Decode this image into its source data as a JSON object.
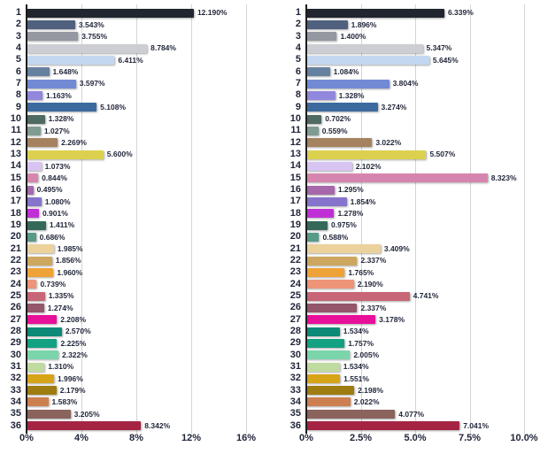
{
  "page": {
    "background": "#ffffff",
    "text_color": "#1f2438",
    "grid_color": "#d4d4d4",
    "axis_color": "#1c1c1c"
  },
  "palette": [
    "#21252f",
    "#50607f",
    "#9598a1",
    "#cdced3",
    "#c3d8f0",
    "#66809f",
    "#7289d4",
    "#9187dd",
    "#3c6a9e",
    "#4f6a62",
    "#7f9b92",
    "#a5825f",
    "#dcd14e",
    "#d8c4f2",
    "#d686ae",
    "#a667ab",
    "#8673cc",
    "#c02fd6",
    "#34695a",
    "#579a88",
    "#ebd29c",
    "#cda75f",
    "#efa238",
    "#ee9478",
    "#c76677",
    "#94566a",
    "#e80f9a",
    "#0d8977",
    "#12a181",
    "#7bd5ab",
    "#bfdb9f",
    "#d8a417",
    "#9f7c10",
    "#cd7f50",
    "#8a635c",
    "#a52444"
  ],
  "chart_data": [
    {
      "type": "bar",
      "orientation": "horizontal",
      "title": "",
      "categories": [
        "1",
        "2",
        "3",
        "4",
        "5",
        "6",
        "7",
        "8",
        "9",
        "10",
        "11",
        "12",
        "13",
        "14",
        "15",
        "16",
        "17",
        "18",
        "19",
        "20",
        "21",
        "22",
        "23",
        "24",
        "25",
        "26",
        "27",
        "28",
        "29",
        "30",
        "31",
        "32",
        "33",
        "34",
        "35",
        "36"
      ],
      "values": [
        12.19,
        3.543,
        3.755,
        8.784,
        6.411,
        1.648,
        3.597,
        1.163,
        5.108,
        1.328,
        1.027,
        2.269,
        5.6,
        1.073,
        0.844,
        0.495,
        1.08,
        0.901,
        1.411,
        0.686,
        1.985,
        1.856,
        1.96,
        0.739,
        1.335,
        1.274,
        2.208,
        2.57,
        2.225,
        2.322,
        1.31,
        1.996,
        2.179,
        1.583,
        3.205,
        8.342
      ],
      "value_labels": [
        "12.190%",
        "3.543%",
        "3.755%",
        "8.784%",
        "6.411%",
        "1.648%",
        "3.597%",
        "1.163%",
        "5.108%",
        "1.328%",
        "1.027%",
        "2.269%",
        "5.600%",
        "1.073%",
        "0.844%",
        "0.495%",
        "1.080%",
        "0.901%",
        "1.411%",
        "0.686%",
        "1.985%",
        "1.856%",
        "1.960%",
        "0.739%",
        "1.335%",
        "1.274%",
        "2.208%",
        "2.570%",
        "2.225%",
        "2.322%",
        "1.310%",
        "1.996%",
        "2.179%",
        "1.583%",
        "3.205%",
        "8.342%"
      ],
      "xlim": [
        0,
        16
      ],
      "xticks": [
        {
          "value": 0,
          "label": "0%"
        },
        {
          "value": 4,
          "label": "4%"
        },
        {
          "value": 8,
          "label": "8%"
        },
        {
          "value": 12,
          "label": "12%"
        },
        {
          "value": 16,
          "label": "16%"
        }
      ],
      "grid": true,
      "legend": false
    },
    {
      "type": "bar",
      "orientation": "horizontal",
      "title": "",
      "categories": [
        "1",
        "2",
        "3",
        "4",
        "5",
        "6",
        "7",
        "8",
        "9",
        "10",
        "11",
        "12",
        "13",
        "14",
        "15",
        "16",
        "17",
        "18",
        "19",
        "20",
        "21",
        "22",
        "23",
        "24",
        "25",
        "26",
        "27",
        "28",
        "29",
        "30",
        "31",
        "32",
        "33",
        "34",
        "35",
        "36"
      ],
      "values": [
        6.339,
        1.896,
        1.4,
        5.347,
        5.645,
        1.084,
        3.804,
        1.328,
        3.274,
        0.702,
        0.559,
        3.022,
        5.507,
        2.102,
        8.323,
        1.295,
        1.854,
        1.278,
        0.975,
        0.588,
        3.409,
        2.337,
        1.765,
        2.19,
        4.741,
        2.337,
        3.178,
        1.534,
        1.757,
        2.005,
        1.534,
        1.551,
        2.198,
        2.022,
        4.077,
        7.041
      ],
      "value_labels": [
        "6.339%",
        "1.896%",
        "1.400%",
        "5.347%",
        "5.645%",
        "1.084%",
        "3.804%",
        "1.328%",
        "3.274%",
        "0.702%",
        "0.559%",
        "3.022%",
        "5.507%",
        "2.102%",
        "8.323%",
        "1.295%",
        "1.854%",
        "1.278%",
        "0.975%",
        "0.588%",
        "3.409%",
        "2.337%",
        "1.765%",
        "2.190%",
        "4.741%",
        "2.337%",
        "3.178%",
        "1.534%",
        "1.757%",
        "2.005%",
        "1.534%",
        "1.551%",
        "2.198%",
        "2.022%",
        "4.077%",
        "7.041%"
      ],
      "xlim": [
        0,
        10
      ],
      "xticks": [
        {
          "value": 0,
          "label": "0%"
        },
        {
          "value": 2.5,
          "label": "2.5%"
        },
        {
          "value": 5,
          "label": "5.0%"
        },
        {
          "value": 7.5,
          "label": "7.5%"
        },
        {
          "value": 10,
          "label": "10.0%"
        }
      ],
      "grid": true,
      "legend": false
    }
  ]
}
